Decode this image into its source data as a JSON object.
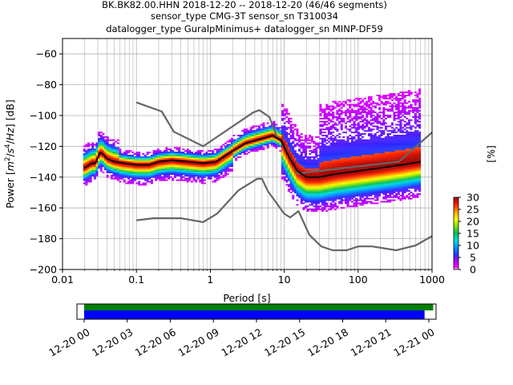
{
  "title": {
    "line1": "BK.BK82.00.HHN   2018-12-20 -- 2018-12-20  (46/46 segments)",
    "line2": "sensor_type CMG-3T sensor_sn T310034",
    "line3": "datalogger_type GuralpMinimus+ datalogger_sn MINP-DF59"
  },
  "colors": {
    "nlnm_nhnm": "#666666",
    "mean": "#000000",
    "timeline_data": "#0000ff",
    "timeline_gaps": "#008000"
  },
  "chart_data": [
    {
      "type": "heatmap",
      "name": "ppsd",
      "xlabel": "Period [s]",
      "ylabel_parts": [
        "Power [",
        "m",
        "2",
        "/",
        "s",
        "4",
        "/",
        "Hz",
        "] [dB]"
      ],
      "x_scale": "log",
      "xlim": [
        0.01,
        1000
      ],
      "ylim": [
        -200,
        -50
      ],
      "x_ticks": [
        0.01,
        0.1,
        1,
        10,
        100,
        1000
      ],
      "x_tick_labels": [
        "0.01",
        "0.1",
        "1",
        "10",
        "100",
        "1000"
      ],
      "y_ticks": [
        -200,
        -180,
        -160,
        -140,
        -120,
        -100,
        -80,
        -60
      ],
      "y_tick_labels": [
        "−200",
        "−180",
        "−160",
        "−140",
        "−120",
        "−100",
        "−80",
        "−60"
      ],
      "grid": true,
      "nhnm": {
        "x": [
          0.1,
          0.22,
          0.32,
          0.8,
          3.8,
          4.6,
          6.3,
          7.9,
          10,
          15.4,
          20,
          354.8,
          1000
        ],
        "y": [
          -91.5,
          -97.4,
          -110.5,
          -120.0,
          -98.0,
          -96.5,
          -101.0,
          -113.5,
          -120.0,
          -138.0,
          -137.0,
          -130.0,
          -111.0
        ]
      },
      "nlnm": {
        "x": [
          0.1,
          0.17,
          0.4,
          0.8,
          1.24,
          2.4,
          4.3,
          5.0,
          6.0,
          10.0,
          12.0,
          15.6,
          21.9,
          31.6,
          45.0,
          70.0,
          101.0,
          154.0,
          328.0,
          600.0,
          1000
        ],
        "y": [
          -168.0,
          -166.7,
          -166.7,
          -169.2,
          -163.7,
          -148.6,
          -141.1,
          -141.1,
          -149.0,
          -163.8,
          -166.2,
          -162.1,
          -177.5,
          -185.0,
          -187.5,
          -187.5,
          -185.0,
          -185.0,
          -187.5,
          -184.4,
          -178.3
        ]
      },
      "mean": {
        "x": [
          0.02,
          0.025,
          0.028,
          0.032,
          0.035,
          0.04,
          0.05,
          0.07,
          0.1,
          0.15,
          0.2,
          0.3,
          0.5,
          0.8,
          1.2,
          2,
          3,
          5,
          7,
          9,
          12,
          15,
          20,
          30,
          50,
          100,
          200,
          400,
          700
        ],
        "y": [
          -134,
          -131,
          -131,
          -124,
          -125,
          -128,
          -130,
          -131,
          -132,
          -132,
          -130,
          -129,
          -130,
          -131,
          -130,
          -123,
          -118,
          -115,
          -113,
          -116,
          -128,
          -136,
          -140,
          -140,
          -138,
          -136,
          -134,
          -132,
          -130
        ]
      },
      "colorbar": {
        "label": "[%]",
        "min": 0,
        "max": 30,
        "ticks": [
          0,
          5,
          10,
          15,
          20,
          25,
          30
        ],
        "tick_labels": [
          "0",
          "5",
          "10",
          "15",
          "20",
          "25",
          "30"
        ]
      }
    },
    {
      "type": "timeline",
      "name": "data-coverage",
      "x_tick_labels": [
        "12-20 00",
        "12-20 03",
        "12-20 06",
        "12-20 09",
        "12-20 12",
        "12-20 15",
        "12-20 18",
        "12-20 21",
        "12-21 00"
      ],
      "xlim_hours": [
        -0.5,
        24.5
      ],
      "data_coverage_hours": [
        0,
        23.7
      ],
      "gap_bar_hours": [
        0,
        24.3
      ]
    }
  ]
}
